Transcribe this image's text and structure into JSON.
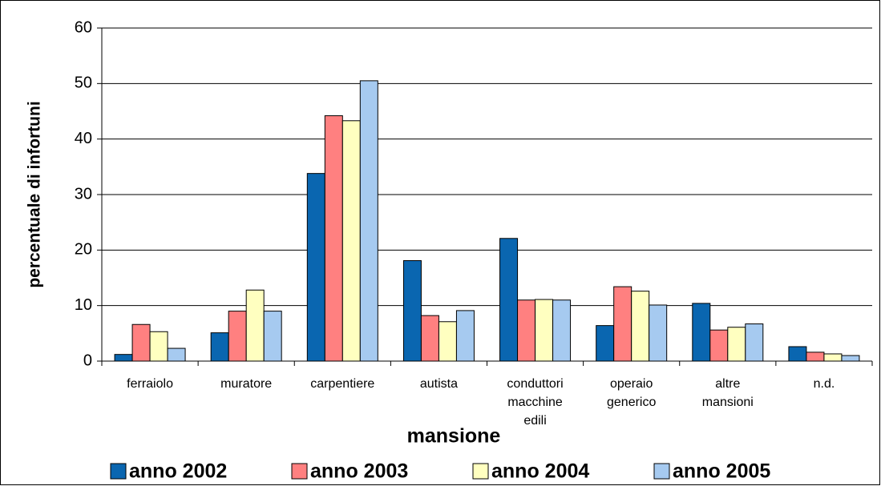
{
  "chart_data": {
    "type": "bar",
    "categories": [
      "ferraiolo",
      "muratore",
      "carpentiere",
      "autista",
      "conduttori macchine edili",
      "operaio generico",
      "altre mansioni",
      "n.d."
    ],
    "series": [
      {
        "name": "anno 2002",
        "color": "#0a66b0",
        "values": [
          1.2,
          5.1,
          33.8,
          18.1,
          22.1,
          6.4,
          10.4,
          2.6
        ]
      },
      {
        "name": "anno 2003",
        "color": "#ff8080",
        "values": [
          6.6,
          9.0,
          44.2,
          8.2,
          11.0,
          13.4,
          5.6,
          1.6
        ]
      },
      {
        "name": "anno 2004",
        "color": "#ffffc0",
        "values": [
          5.3,
          12.8,
          43.3,
          7.1,
          11.1,
          12.6,
          6.1,
          1.3
        ]
      },
      {
        "name": "anno 2005",
        "color": "#a6caf0",
        "values": [
          2.3,
          9.0,
          50.5,
          9.1,
          11.0,
          10.1,
          6.7,
          1.0
        ]
      }
    ],
    "x_label": "mansione",
    "y_label": "percentuale di infortuni",
    "ylim": [
      0,
      60
    ],
    "yticks": [
      0,
      10,
      20,
      30,
      40,
      50,
      60
    ],
    "grid": true,
    "legend": "bottom"
  }
}
